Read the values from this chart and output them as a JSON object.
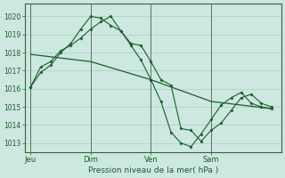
{
  "background_color": "#cce8e0",
  "grid_color": "#aacfc8",
  "line_color": "#1a5e2a",
  "xlabel": "Pression niveau de la mer( hPa )",
  "ylim": [
    1012.5,
    1020.7
  ],
  "yticks": [
    1013,
    1014,
    1015,
    1016,
    1017,
    1018,
    1019,
    1020
  ],
  "day_labels": [
    "Jeu",
    "Dim",
    "Ven",
    "Sam"
  ],
  "day_positions": [
    0,
    3,
    6,
    9
  ],
  "xlim": [
    -0.3,
    12.5
  ],
  "series1_x": [
    0.0,
    0.5,
    1.0,
    1.5,
    2.0,
    2.5,
    3.0,
    3.5,
    4.0,
    4.5,
    5.0,
    5.5,
    6.0,
    6.5,
    7.0,
    7.5,
    8.0,
    8.5,
    9.0,
    9.5,
    10.0,
    10.5,
    11.0,
    11.5,
    12.0
  ],
  "series1_y": [
    1016.1,
    1016.9,
    1017.3,
    1018.0,
    1018.5,
    1019.3,
    1020.0,
    1019.9,
    1019.5,
    1019.2,
    1018.5,
    1018.4,
    1017.5,
    1016.5,
    1016.2,
    1013.8,
    1013.7,
    1013.1,
    1013.7,
    1014.1,
    1014.8,
    1015.5,
    1015.7,
    1015.2,
    1015.0
  ],
  "series2_x": [
    0.0,
    0.5,
    1.0,
    1.5,
    2.0,
    2.5,
    3.0,
    3.5,
    4.0,
    4.5,
    5.0,
    5.5,
    6.0,
    6.5,
    7.0,
    7.5,
    8.0,
    8.5,
    9.0,
    9.5,
    10.0,
    10.5,
    11.0,
    11.5,
    12.0
  ],
  "series2_y": [
    1016.1,
    1017.2,
    1017.5,
    1018.1,
    1018.4,
    1018.8,
    1019.3,
    1019.7,
    1020.0,
    1019.2,
    1018.4,
    1017.6,
    1016.5,
    1015.3,
    1013.6,
    1013.0,
    1012.8,
    1013.5,
    1014.3,
    1015.1,
    1015.5,
    1015.8,
    1015.2,
    1015.0,
    1014.9
  ],
  "series3_x": [
    0.0,
    3.0,
    6.0,
    9.0,
    12.0
  ],
  "series3_y": [
    1017.9,
    1017.5,
    1016.5,
    1015.3,
    1014.9
  ],
  "vline_color": "#556655",
  "vline_positions": [
    0,
    3,
    6,
    9
  ]
}
